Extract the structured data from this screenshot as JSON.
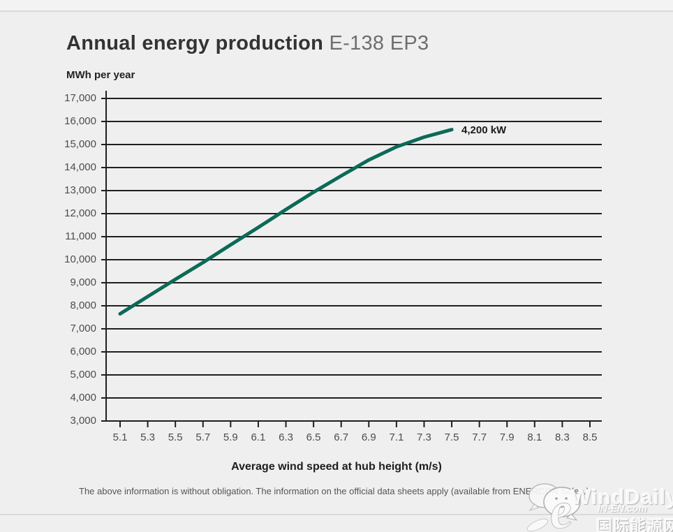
{
  "header": {
    "title_bold": "Annual energy production",
    "title_model": "E-138 EP3"
  },
  "axes": {
    "y_unit_label": "MWh per year",
    "x_title": "Average wind speed at hub height (m/s)"
  },
  "footnote": "The above information is without obligation. The information on the official data sheets apply (available from ENERCON Sales.)",
  "watermark": {
    "brand": "WindDaily",
    "site": "IN-EN.com",
    "site_cn": "国际能源网",
    "bubbles_icon": "chat-bubbles",
    "logo_icon": "e-swoosh"
  },
  "colors": {
    "background": "#efefef",
    "grid": "#1f1f1f",
    "curve": "#0c6a56",
    "tick_text": "#4c4c4c",
    "divider": "#d9d9d9"
  },
  "chart_data": {
    "type": "line",
    "title": "Annual energy production E-138 EP3",
    "xlabel": "Average wind speed at hub height (m/s)",
    "ylabel": "MWh per year",
    "xlim": [
      5.1,
      8.5
    ],
    "ylim": [
      3000,
      17000
    ],
    "x_ticks": [
      5.1,
      5.3,
      5.5,
      5.7,
      5.9,
      6.1,
      6.3,
      6.5,
      6.7,
      6.9,
      7.1,
      7.3,
      7.5,
      7.7,
      7.9,
      8.1,
      8.3,
      8.5
    ],
    "y_ticks": [
      3000,
      4000,
      5000,
      6000,
      7000,
      8000,
      9000,
      10000,
      11000,
      12000,
      13000,
      14000,
      15000,
      16000,
      17000
    ],
    "grid": "horizontal",
    "legend_position": "end-of-line",
    "series": [
      {
        "name": "4,200 kW",
        "color": "#0c6a56",
        "x": [
          5.1,
          5.3,
          5.5,
          5.7,
          5.9,
          6.1,
          6.3,
          6.5,
          6.7,
          6.9,
          7.1,
          7.3,
          7.5
        ],
        "y": [
          7650,
          8400,
          9150,
          9880,
          10650,
          11400,
          12180,
          12930,
          13640,
          14330,
          14900,
          15320,
          15650
        ]
      }
    ]
  }
}
